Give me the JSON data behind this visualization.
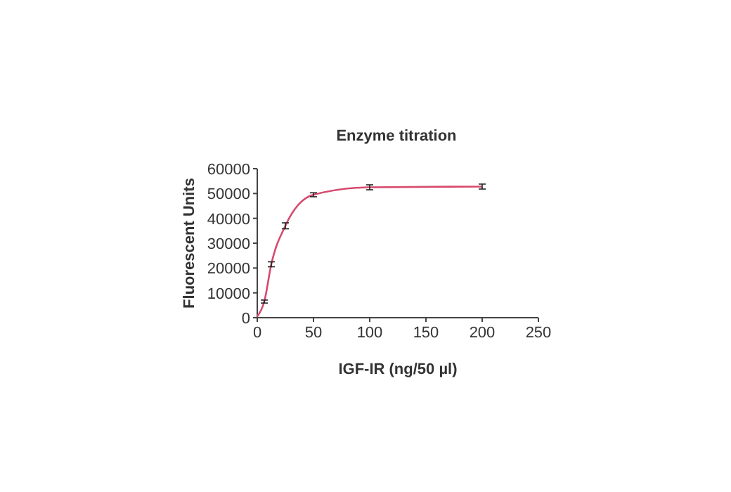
{
  "chart_data": {
    "type": "line",
    "title": "Enzyme titration",
    "xlabel": "IGF-IR (ng/50 µl)",
    "ylabel": "Fluorescent Units",
    "x": [
      0,
      6.25,
      12.5,
      25,
      50,
      100,
      200
    ],
    "series": [
      {
        "color": "#d64a6e",
        "values": [
          500,
          6500,
          21500,
          37000,
          49500,
          52500,
          52800
        ],
        "errors": [
          null,
          600,
          1000,
          1200,
          800,
          1000,
          1000
        ]
      }
    ],
    "xlim": [
      0,
      250
    ],
    "xticks": [
      0,
      50,
      100,
      150,
      200,
      250
    ],
    "ylim": [
      0,
      60000
    ],
    "yticks": [
      0,
      10000,
      20000,
      30000,
      40000,
      50000,
      60000
    ],
    "marker": "none",
    "grid": false
  }
}
